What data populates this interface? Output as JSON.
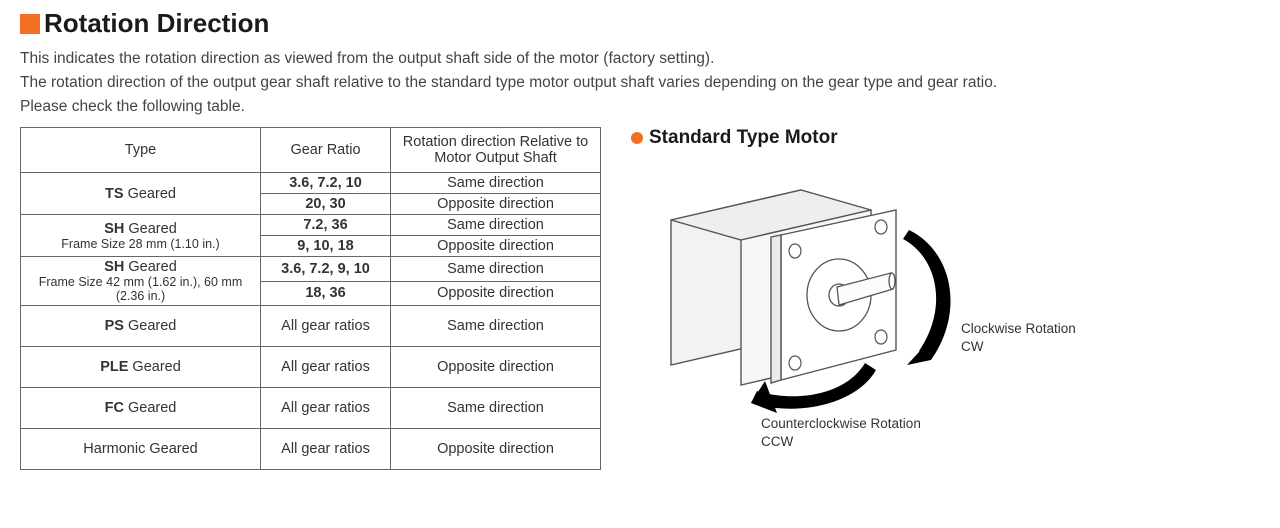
{
  "heading": "Rotation Direction",
  "desc_line1": "This indicates the rotation direction as viewed from the output shaft side of the motor (factory setting).",
  "desc_line2": "The rotation direction of the output gear shaft relative to the standard type motor output shaft varies depending on the gear type and gear ratio.",
  "desc_line3": "Please check the following table.",
  "table": {
    "header_type": "Type",
    "header_ratio": "Gear Ratio",
    "header_dir": "Rotation direction Relative to Motor Output Shaft",
    "rows": [
      {
        "type_bold": "TS",
        "type_rest": " Geared",
        "type_sub": "",
        "span": 2,
        "sub": [
          {
            "ratio": "3.6, 7.2, 10",
            "ratio_bold": true,
            "dir": "Same direction"
          },
          {
            "ratio": "20, 30",
            "ratio_bold": true,
            "dir": "Opposite direction"
          }
        ]
      },
      {
        "type_bold": "SH",
        "type_rest": " Geared",
        "type_sub": "Frame Size 28 mm (1.10 in.)",
        "span": 2,
        "sub": [
          {
            "ratio": "7.2, 36",
            "ratio_bold": true,
            "dir": "Same direction"
          },
          {
            "ratio": "9, 10, 18",
            "ratio_bold": true,
            "dir": "Opposite direction"
          }
        ]
      },
      {
        "type_bold": "SH",
        "type_rest": " Geared",
        "type_sub": "Frame Size 42 mm (1.62 in.), 60 mm (2.36 in.)",
        "span": 2,
        "sub": [
          {
            "ratio": "3.6, 7.2, 9, 10",
            "ratio_bold": true,
            "dir": "Same direction"
          },
          {
            "ratio": "18, 36",
            "ratio_bold": true,
            "dir": "Opposite direction"
          }
        ]
      },
      {
        "type_bold": "PS",
        "type_rest": " Geared",
        "type_sub": "",
        "span": 1,
        "tall": true,
        "sub": [
          {
            "ratio": "All gear ratios",
            "ratio_bold": false,
            "dir": "Same direction"
          }
        ]
      },
      {
        "type_bold": "PLE",
        "type_rest": " Geared",
        "type_sub": "",
        "span": 1,
        "tall": true,
        "sub": [
          {
            "ratio": "All gear ratios",
            "ratio_bold": false,
            "dir": "Opposite direction"
          }
        ]
      },
      {
        "type_bold": "FC",
        "type_rest": " Geared",
        "type_sub": "",
        "span": 1,
        "tall": true,
        "sub": [
          {
            "ratio": "All gear ratios",
            "ratio_bold": false,
            "dir": "Same direction"
          }
        ]
      },
      {
        "type_bold": "",
        "type_rest": "Harmonic Geared",
        "type_sub": "",
        "span": 1,
        "tall": true,
        "sub": [
          {
            "ratio": "All gear ratios",
            "ratio_bold": false,
            "dir": "Opposite direction"
          }
        ]
      }
    ]
  },
  "subhead": "Standard Type Motor",
  "label_cw_1": "Clockwise Rotation",
  "label_cw_2": "CW",
  "label_ccw_1": "Counterclockwise Rotation",
  "label_ccw_2": "CCW",
  "colors": {
    "accent": "#f36f21",
    "border": "#666666",
    "text": "#333333"
  }
}
